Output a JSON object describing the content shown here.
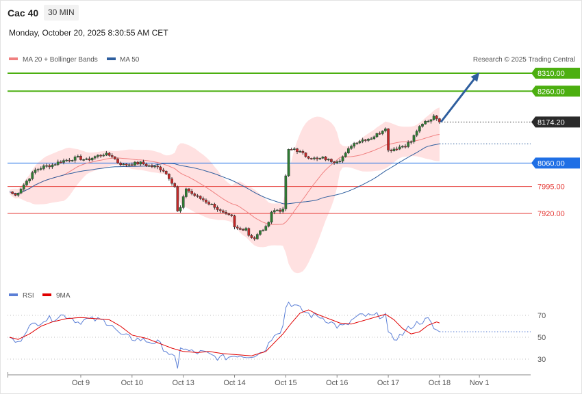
{
  "header": {
    "title": "Cac 40",
    "interval": "30 MIN",
    "datetime": "Monday, October 20, 2025 8:30:55 AM CET"
  },
  "legend": {
    "main": [
      {
        "label": "MA 20 + Bollinger Bands",
        "color": "#f08080"
      },
      {
        "label": "MA 50",
        "color": "#2e5e9e"
      }
    ],
    "rsi": [
      {
        "label": "RSI",
        "color": "#5b7fd6"
      },
      {
        "label": "9MA",
        "color": "#e00000"
      }
    ]
  },
  "credit": "Research © 2025 Trading Central",
  "levels": [
    {
      "label": "8310.00",
      "value": 8310,
      "kind": "resistance",
      "color": "#4caf10"
    },
    {
      "label": "8260.00",
      "value": 8260,
      "kind": "resistance",
      "color": "#4caf10"
    },
    {
      "label": "8174.20",
      "value": 8174.2,
      "kind": "last",
      "color": "#2a2a2a"
    },
    {
      "label": "8060.00",
      "value": 8060,
      "kind": "pivot",
      "color": "#1f6fe5"
    },
    {
      "label": "7995.00",
      "value": 7995,
      "kind": "support",
      "color": "#e53935"
    },
    {
      "label": "7920.00",
      "value": 7920,
      "kind": "support",
      "color": "#e53935"
    }
  ],
  "chart_data": [
    {
      "type": "candlestick",
      "ylim": [
        7800,
        8330
      ],
      "xlim": [
        0,
        183
      ],
      "x_ticks": [
        {
          "label": "Oct 9",
          "x": 25
        },
        {
          "label": "Oct 10",
          "x": 43
        },
        {
          "label": "Oct 13",
          "x": 61
        },
        {
          "label": "Oct 14",
          "x": 79
        },
        {
          "label": "Oct 15",
          "x": 97
        },
        {
          "label": "Oct 16",
          "x": 115
        },
        {
          "label": "Oct 17",
          "x": 133
        },
        {
          "label": "Oct 18",
          "x": 151
        },
        {
          "label": "Nov 1",
          "x": 165
        }
      ],
      "close_anchors": [
        [
          0,
          7980
        ],
        [
          2,
          7970
        ],
        [
          4,
          7990
        ],
        [
          6,
          8010
        ],
        [
          9,
          8040
        ],
        [
          12,
          8050
        ],
        [
          15,
          8055
        ],
        [
          18,
          8065
        ],
        [
          21,
          8070
        ],
        [
          24,
          8075
        ],
        [
          27,
          8068
        ],
        [
          30,
          8078
        ],
        [
          33,
          8085
        ],
        [
          36,
          8080
        ],
        [
          38,
          8062
        ],
        [
          40,
          8055
        ],
        [
          43,
          8058
        ],
        [
          46,
          8060
        ],
        [
          49,
          8052
        ],
        [
          52,
          8048
        ],
        [
          54,
          8040
        ],
        [
          56,
          8020
        ],
        [
          58,
          7995
        ],
        [
          59,
          7925
        ],
        [
          60,
          7935
        ],
        [
          62,
          7990
        ],
        [
          64,
          7975
        ],
        [
          66,
          7965
        ],
        [
          68,
          7958
        ],
        [
          70,
          7948
        ],
        [
          72,
          7940
        ],
        [
          74,
          7925
        ],
        [
          76,
          7915
        ],
        [
          78,
          7910
        ],
        [
          79,
          7880
        ],
        [
          81,
          7875
        ],
        [
          83,
          7880
        ],
        [
          84,
          7860
        ],
        [
          86,
          7850
        ],
        [
          88,
          7870
        ],
        [
          90,
          7880
        ],
        [
          91,
          7900
        ],
        [
          92,
          7925
        ],
        [
          94,
          7930
        ],
        [
          96,
          7928
        ],
        [
          97,
          8025
        ],
        [
          98,
          8095
        ],
        [
          100,
          8100
        ],
        [
          102,
          8090
        ],
        [
          104,
          8080
        ],
        [
          106,
          8075
        ],
        [
          108,
          8070
        ],
        [
          110,
          8074
        ],
        [
          112,
          8068
        ],
        [
          114,
          8065
        ],
        [
          116,
          8070
        ],
        [
          118,
          8085
        ],
        [
          120,
          8110
        ],
        [
          122,
          8120
        ],
        [
          124,
          8125
        ],
        [
          127,
          8130
        ],
        [
          130,
          8145
        ],
        [
          132,
          8160
        ],
        [
          133,
          8095
        ],
        [
          135,
          8100
        ],
        [
          137,
          8105
        ],
        [
          139,
          8110
        ],
        [
          141,
          8120
        ],
        [
          143,
          8150
        ],
        [
          146,
          8175
        ],
        [
          148,
          8182
        ],
        [
          149,
          8195
        ],
        [
          150,
          8180
        ],
        [
          151,
          8174.2
        ]
      ],
      "forecast_arrow": {
        "from": [
          151,
          8174.2
        ],
        "to": [
          165,
          8305
        ]
      }
    },
    {
      "type": "line",
      "name": "RSI",
      "ylim": [
        15,
        85
      ],
      "y_ticks": [
        70,
        50,
        30
      ],
      "anchors": [
        [
          0,
          50
        ],
        [
          3,
          44
        ],
        [
          6,
          58
        ],
        [
          9,
          62
        ],
        [
          12,
          66
        ],
        [
          15,
          67
        ],
        [
          18,
          70
        ],
        [
          21,
          69
        ],
        [
          24,
          64
        ],
        [
          27,
          66
        ],
        [
          30,
          66
        ],
        [
          33,
          65
        ],
        [
          36,
          62
        ],
        [
          38,
          54
        ],
        [
          40,
          51
        ],
        [
          43,
          49
        ],
        [
          46,
          48
        ],
        [
          49,
          46
        ],
        [
          52,
          45
        ],
        [
          55,
          38
        ],
        [
          58,
          30
        ],
        [
          59,
          20
        ],
        [
          60,
          42
        ],
        [
          62,
          38
        ],
        [
          65,
          36
        ],
        [
          68,
          36
        ],
        [
          71,
          33
        ],
        [
          74,
          31
        ],
        [
          77,
          32
        ],
        [
          80,
          34
        ],
        [
          83,
          33
        ],
        [
          86,
          34
        ],
        [
          89,
          37
        ],
        [
          91,
          44
        ],
        [
          93,
          54
        ],
        [
          95,
          56
        ],
        [
          96,
          60
        ],
        [
          97,
          78
        ],
        [
          98,
          82
        ],
        [
          100,
          79
        ],
        [
          103,
          74
        ],
        [
          106,
          70
        ],
        [
          109,
          69
        ],
        [
          112,
          65
        ],
        [
          115,
          60
        ],
        [
          118,
          60
        ],
        [
          121,
          67
        ],
        [
          124,
          70
        ],
        [
          127,
          69
        ],
        [
          130,
          70
        ],
        [
          132,
          71
        ],
        [
          133,
          52
        ],
        [
          135,
          49
        ],
        [
          137,
          51
        ],
        [
          139,
          55
        ],
        [
          141,
          60
        ],
        [
          144,
          64
        ],
        [
          147,
          66
        ],
        [
          149,
          58
        ],
        [
          151,
          55
        ]
      ],
      "ma_anchors": [
        [
          0,
          50
        ],
        [
          3,
          48
        ],
        [
          7,
          53
        ],
        [
          11,
          60
        ],
        [
          15,
          64
        ],
        [
          20,
          67
        ],
        [
          25,
          68
        ],
        [
          30,
          67
        ],
        [
          35,
          66
        ],
        [
          39,
          60
        ],
        [
          43,
          52
        ],
        [
          48,
          49
        ],
        [
          53,
          44
        ],
        [
          57,
          40
        ],
        [
          61,
          37
        ],
        [
          66,
          36
        ],
        [
          70,
          37
        ],
        [
          75,
          35
        ],
        [
          80,
          34
        ],
        [
          85,
          33
        ],
        [
          90,
          37
        ],
        [
          93,
          45
        ],
        [
          96,
          53
        ],
        [
          99,
          63
        ],
        [
          102,
          72
        ],
        [
          105,
          75
        ],
        [
          108,
          71
        ],
        [
          112,
          67
        ],
        [
          116,
          63
        ],
        [
          120,
          62
        ],
        [
          124,
          65
        ],
        [
          128,
          68
        ],
        [
          132,
          71
        ],
        [
          135,
          66
        ],
        [
          138,
          58
        ],
        [
          141,
          53
        ],
        [
          144,
          55
        ],
        [
          147,
          61
        ],
        [
          150,
          64
        ],
        [
          151,
          63
        ]
      ]
    }
  ]
}
